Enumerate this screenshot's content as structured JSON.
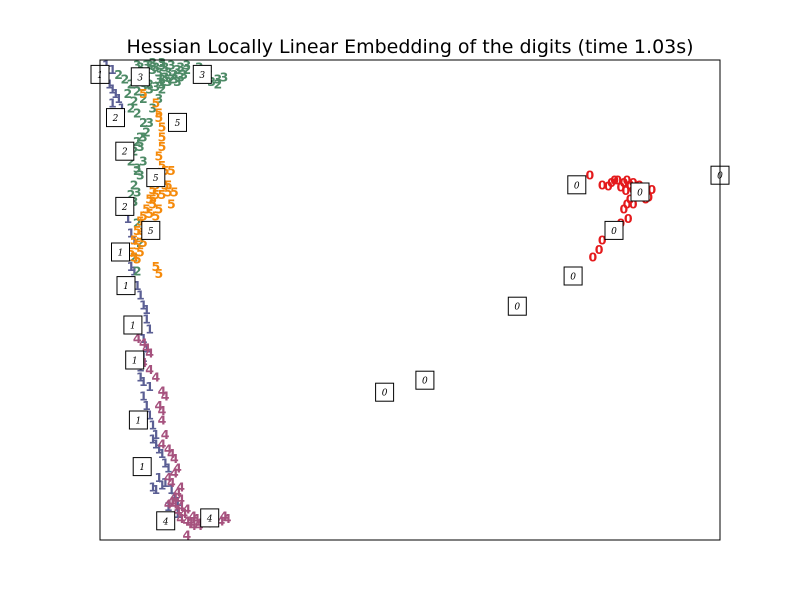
{
  "chart_data": {
    "type": "scatter",
    "title": "Hessian Locally Linear Embedding of the digits (time 1.03s)",
    "xlabel": "",
    "ylabel": "",
    "xlim": [
      0,
      1
    ],
    "ylim": [
      0,
      1
    ],
    "grid": false,
    "legend": "none",
    "axis_ticks": false,
    "series": [
      {
        "label": "0",
        "color": "#e41a1c",
        "points": [
          [
            0.79,
            0.76
          ],
          [
            0.81,
            0.74
          ],
          [
            0.83,
            0.75
          ],
          [
            0.845,
            0.745
          ],
          [
            0.855,
            0.74
          ],
          [
            0.86,
            0.73
          ],
          [
            0.87,
            0.72
          ],
          [
            0.88,
            0.71
          ],
          [
            0.875,
            0.72
          ],
          [
            0.865,
            0.725
          ],
          [
            0.85,
            0.75
          ],
          [
            0.84,
            0.735
          ],
          [
            0.82,
            0.738
          ],
          [
            0.825,
            0.745
          ],
          [
            0.835,
            0.75
          ],
          [
            0.885,
            0.715
          ],
          [
            0.89,
            0.73
          ],
          [
            0.86,
            0.745
          ],
          [
            0.87,
            0.74
          ],
          [
            0.855,
            0.71
          ],
          [
            0.85,
            0.7
          ],
          [
            0.845,
            0.69
          ],
          [
            0.86,
            0.7
          ],
          [
            0.852,
            0.67
          ],
          [
            0.84,
            0.66
          ],
          [
            0.83,
            0.65
          ],
          [
            0.82,
            0.635
          ],
          [
            0.81,
            0.625
          ],
          [
            0.805,
            0.605
          ],
          [
            0.795,
            0.59
          ],
          [
            0.865,
            0.735
          ],
          [
            0.875,
            0.728
          ],
          [
            0.848,
            0.728
          ],
          [
            0.862,
            0.718
          ]
        ]
      },
      {
        "label": "1",
        "color": "#5b5f94",
        "points": [
          [
            0.01,
            0.99
          ],
          [
            0.02,
            0.98
          ],
          [
            0.015,
            0.95
          ],
          [
            0.02,
            0.94
          ],
          [
            0.025,
            0.93
          ],
          [
            0.03,
            0.92
          ],
          [
            0.02,
            0.91
          ],
          [
            0.035,
            0.9
          ],
          [
            0.04,
            0.61
          ],
          [
            0.045,
            0.59
          ],
          [
            0.05,
            0.57
          ],
          [
            0.055,
            0.56
          ],
          [
            0.06,
            0.53
          ],
          [
            0.065,
            0.51
          ],
          [
            0.07,
            0.49
          ],
          [
            0.075,
            0.48
          ],
          [
            0.075,
            0.46
          ],
          [
            0.08,
            0.44
          ],
          [
            0.07,
            0.42
          ],
          [
            0.075,
            0.4
          ],
          [
            0.07,
            0.38
          ],
          [
            0.065,
            0.36
          ],
          [
            0.065,
            0.34
          ],
          [
            0.07,
            0.33
          ],
          [
            0.08,
            0.32
          ],
          [
            0.07,
            0.3
          ],
          [
            0.075,
            0.28
          ],
          [
            0.08,
            0.26
          ],
          [
            0.085,
            0.24
          ],
          [
            0.09,
            0.22
          ],
          [
            0.085,
            0.21
          ],
          [
            0.09,
            0.2
          ],
          [
            0.095,
            0.19
          ],
          [
            0.1,
            0.18
          ],
          [
            0.105,
            0.16
          ],
          [
            0.11,
            0.15
          ],
          [
            0.095,
            0.13
          ],
          [
            0.105,
            0.12
          ],
          [
            0.1,
            0.115
          ],
          [
            0.115,
            0.105
          ],
          [
            0.12,
            0.09
          ],
          [
            0.125,
            0.08
          ],
          [
            0.09,
            0.105
          ],
          [
            0.085,
            0.11
          ],
          [
            0.11,
            0.07
          ],
          [
            0.125,
            0.055
          ],
          [
            0.1,
            0.045
          ],
          [
            0.055,
            0.625
          ],
          [
            0.05,
            0.64
          ],
          [
            0.045,
            0.67
          ],
          [
            0.04,
            0.695
          ]
        ]
      },
      {
        "label": "2",
        "color": "#4d8a66",
        "points": [
          [
            0.03,
            0.97
          ],
          [
            0.04,
            0.96
          ],
          [
            0.05,
            0.95
          ],
          [
            0.06,
            0.935
          ],
          [
            0.045,
            0.93
          ],
          [
            0.055,
            0.915
          ],
          [
            0.07,
            0.92
          ],
          [
            0.08,
            0.95
          ],
          [
            0.1,
            0.94
          ],
          [
            0.115,
            0.96
          ],
          [
            0.14,
            0.98
          ],
          [
            0.17,
            0.96
          ],
          [
            0.19,
            0.95
          ],
          [
            0.05,
            0.9
          ],
          [
            0.06,
            0.89
          ],
          [
            0.07,
            0.87
          ],
          [
            0.075,
            0.85
          ],
          [
            0.065,
            0.84
          ],
          [
            0.06,
            0.83
          ],
          [
            0.055,
            0.81
          ],
          [
            0.05,
            0.79
          ],
          [
            0.06,
            0.77
          ],
          [
            0.055,
            0.74
          ],
          [
            0.05,
            0.72
          ],
          [
            0.045,
            0.7
          ],
          [
            0.06,
            0.66
          ],
          [
            0.065,
            0.62
          ],
          [
            0.055,
            0.59
          ],
          [
            0.06,
            0.56
          ]
        ]
      },
      {
        "label": "3",
        "color": "#4d8a66",
        "points": [
          [
            0.06,
            0.99
          ],
          [
            0.08,
            0.99
          ],
          [
            0.09,
            0.985
          ],
          [
            0.1,
            0.99
          ],
          [
            0.105,
            0.985
          ],
          [
            0.095,
            0.975
          ],
          [
            0.11,
            0.975
          ],
          [
            0.12,
            0.97
          ],
          [
            0.125,
            0.98
          ],
          [
            0.13,
            0.985
          ],
          [
            0.115,
            0.99
          ],
          [
            0.1,
            0.995
          ],
          [
            0.085,
            0.98
          ],
          [
            0.075,
            0.97
          ],
          [
            0.095,
            0.96
          ],
          [
            0.105,
            0.965
          ],
          [
            0.12,
            0.96
          ],
          [
            0.11,
            0.955
          ],
          [
            0.1,
            0.95
          ],
          [
            0.09,
            0.945
          ],
          [
            0.08,
            0.94
          ],
          [
            0.07,
            0.945
          ],
          [
            0.075,
            0.955
          ],
          [
            0.065,
            0.96
          ],
          [
            0.055,
            0.965
          ],
          [
            0.065,
            0.985
          ],
          [
            0.075,
            0.99
          ],
          [
            0.085,
            0.995
          ],
          [
            0.1,
            0.96
          ],
          [
            0.13,
            0.965
          ],
          [
            0.125,
            0.955
          ],
          [
            0.135,
            0.97
          ],
          [
            0.14,
            0.99
          ],
          [
            0.16,
            0.985
          ],
          [
            0.175,
            0.98
          ],
          [
            0.18,
            0.955
          ],
          [
            0.2,
            0.965
          ],
          [
            0.19,
            0.96
          ],
          [
            0.095,
            0.92
          ],
          [
            0.085,
            0.9
          ],
          [
            0.08,
            0.87
          ],
          [
            0.07,
            0.84
          ],
          [
            0.065,
            0.82
          ],
          [
            0.07,
            0.79
          ],
          [
            0.06,
            0.775
          ],
          [
            0.065,
            0.76
          ],
          [
            0.06,
            0.725
          ],
          [
            0.055,
            0.705
          ],
          [
            0.05,
            0.685
          ]
        ]
      },
      {
        "label": "4",
        "color": "#a6527e",
        "points": [
          [
            0.06,
            0.42
          ],
          [
            0.07,
            0.41
          ],
          [
            0.075,
            0.4
          ],
          [
            0.08,
            0.39
          ],
          [
            0.07,
            0.37
          ],
          [
            0.08,
            0.355
          ],
          [
            0.09,
            0.34
          ],
          [
            0.1,
            0.31
          ],
          [
            0.105,
            0.3
          ],
          [
            0.095,
            0.28
          ],
          [
            0.1,
            0.27
          ],
          [
            0.1,
            0.25
          ],
          [
            0.105,
            0.22
          ],
          [
            0.1,
            0.2
          ],
          [
            0.11,
            0.19
          ],
          [
            0.115,
            0.18
          ],
          [
            0.12,
            0.17
          ],
          [
            0.125,
            0.15
          ],
          [
            0.12,
            0.14
          ],
          [
            0.11,
            0.13
          ],
          [
            0.115,
            0.12
          ],
          [
            0.13,
            0.11
          ],
          [
            0.125,
            0.1
          ],
          [
            0.12,
            0.09
          ],
          [
            0.115,
            0.08
          ],
          [
            0.12,
            0.075
          ],
          [
            0.13,
            0.07
          ],
          [
            0.14,
            0.065
          ],
          [
            0.135,
            0.055
          ],
          [
            0.13,
            0.045
          ],
          [
            0.14,
            0.04
          ],
          [
            0.145,
            0.035
          ],
          [
            0.15,
            0.03
          ],
          [
            0.16,
            0.035
          ],
          [
            0.165,
            0.04
          ],
          [
            0.175,
            0.045
          ],
          [
            0.185,
            0.045
          ],
          [
            0.2,
            0.05
          ],
          [
            0.205,
            0.045
          ],
          [
            0.195,
            0.04
          ],
          [
            0.175,
            0.035
          ],
          [
            0.16,
            0.03
          ],
          [
            0.14,
            0.01
          ],
          [
            0.15,
            0.05
          ],
          [
            0.125,
            0.06
          ],
          [
            0.155,
            0.045
          ],
          [
            0.13,
            0.085
          ],
          [
            0.11,
            0.075
          ]
        ]
      },
      {
        "label": "5",
        "color": "#f58a0b",
        "points": [
          [
            0.07,
            0.93
          ],
          [
            0.09,
            0.91
          ],
          [
            0.095,
            0.89
          ],
          [
            0.095,
            0.88
          ],
          [
            0.1,
            0.86
          ],
          [
            0.1,
            0.84
          ],
          [
            0.1,
            0.82
          ],
          [
            0.095,
            0.8
          ],
          [
            0.1,
            0.78
          ],
          [
            0.105,
            0.77
          ],
          [
            0.095,
            0.76
          ],
          [
            0.1,
            0.75
          ],
          [
            0.09,
            0.74
          ],
          [
            0.085,
            0.73
          ],
          [
            0.09,
            0.72
          ],
          [
            0.08,
            0.71
          ],
          [
            0.085,
            0.7
          ],
          [
            0.075,
            0.69
          ],
          [
            0.08,
            0.68
          ],
          [
            0.07,
            0.675
          ],
          [
            0.065,
            0.665
          ],
          [
            0.07,
            0.655
          ],
          [
            0.06,
            0.645
          ],
          [
            0.065,
            0.635
          ],
          [
            0.055,
            0.625
          ],
          [
            0.06,
            0.615
          ],
          [
            0.05,
            0.6
          ],
          [
            0.055,
            0.59
          ],
          [
            0.09,
            0.755
          ],
          [
            0.1,
            0.72
          ],
          [
            0.11,
            0.725
          ],
          [
            0.1,
            0.765
          ],
          [
            0.105,
            0.74
          ],
          [
            0.115,
            0.7
          ],
          [
            0.08,
            0.65
          ],
          [
            0.09,
            0.675
          ],
          [
            0.095,
            0.69
          ],
          [
            0.085,
            0.71
          ],
          [
            0.075,
            0.645
          ],
          [
            0.07,
            0.62
          ],
          [
            0.065,
            0.6
          ],
          [
            0.06,
            0.585
          ],
          [
            0.09,
            0.57
          ],
          [
            0.095,
            0.555
          ],
          [
            0.11,
            0.74
          ],
          [
            0.115,
            0.77
          ],
          [
            0.12,
            0.725
          ],
          [
            0.1,
            0.745
          ]
        ]
      }
    ],
    "thumbnails": [
      {
        "digit": "1",
        "x": 0.0,
        "y": 0.97
      },
      {
        "digit": "3",
        "x": 0.065,
        "y": 0.965
      },
      {
        "digit": "3",
        "x": 0.165,
        "y": 0.97
      },
      {
        "digit": "2",
        "x": 0.025,
        "y": 0.88
      },
      {
        "digit": "5",
        "x": 0.125,
        "y": 0.87
      },
      {
        "digit": "2",
        "x": 0.04,
        "y": 0.81
      },
      {
        "digit": "5",
        "x": 0.09,
        "y": 0.755
      },
      {
        "digit": "2",
        "x": 0.04,
        "y": 0.695
      },
      {
        "digit": "5",
        "x": 0.082,
        "y": 0.645
      },
      {
        "digit": "1",
        "x": 0.033,
        "y": 0.6
      },
      {
        "digit": "1",
        "x": 0.042,
        "y": 0.53
      },
      {
        "digit": "1",
        "x": 0.053,
        "y": 0.448
      },
      {
        "digit": "1",
        "x": 0.056,
        "y": 0.375
      },
      {
        "digit": "1",
        "x": 0.062,
        "y": 0.25
      },
      {
        "digit": "1",
        "x": 0.068,
        "y": 0.153
      },
      {
        "digit": "4",
        "x": 0.106,
        "y": 0.04
      },
      {
        "digit": "4",
        "x": 0.177,
        "y": 0.046
      },
      {
        "digit": "0",
        "x": 0.769,
        "y": 0.74
      },
      {
        "digit": "0",
        "x": 0.871,
        "y": 0.725
      },
      {
        "digit": "0",
        "x": 1.0,
        "y": 0.76
      },
      {
        "digit": "0",
        "x": 0.829,
        "y": 0.645
      },
      {
        "digit": "0",
        "x": 0.763,
        "y": 0.55
      },
      {
        "digit": "0",
        "x": 0.673,
        "y": 0.487
      },
      {
        "digit": "0",
        "x": 0.524,
        "y": 0.333
      },
      {
        "digit": "0",
        "x": 0.459,
        "y": 0.308
      }
    ]
  }
}
